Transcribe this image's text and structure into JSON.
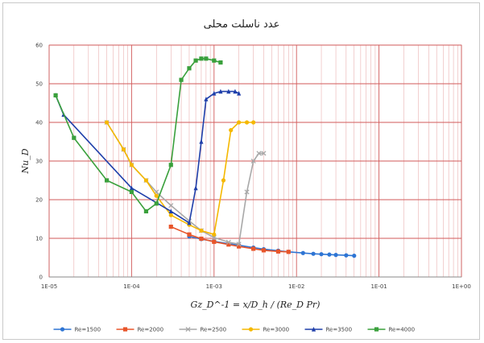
{
  "chart_data": {
    "type": "line",
    "title": "عدد ناسلت محلی",
    "ylabel": "Nu_D",
    "xlabel": "Gz_D^-1 = x/D_h / (Re_D Pr)",
    "x_scale": "log",
    "xlim": [
      1e-05,
      1
    ],
    "ylim": [
      0,
      60
    ],
    "x_tick_labels": [
      "1E-05",
      "1E-04",
      "1E-03",
      "1E-02",
      "1E-01",
      "1E+00"
    ],
    "y_ticks": [
      0,
      10,
      20,
      30,
      40,
      50,
      60
    ],
    "y_tick_labels": [
      "0",
      "10",
      "20",
      "30",
      "40",
      "50",
      "60"
    ],
    "grid": true,
    "legend_position": "bottom",
    "series": [
      {
        "name": "Re=1500",
        "color": "#2e75d4",
        "marker": "circle",
        "points": [
          [
            0.0005,
            10.5
          ],
          [
            0.0007,
            9.8
          ],
          [
            0.001,
            9.2
          ],
          [
            0.0015,
            8.6
          ],
          [
            0.002,
            8.2
          ],
          [
            0.003,
            7.6
          ],
          [
            0.004,
            7.2
          ],
          [
            0.006,
            6.8
          ],
          [
            0.008,
            6.5
          ],
          [
            0.012,
            6.2
          ],
          [
            0.016,
            6.0
          ],
          [
            0.02,
            5.9
          ],
          [
            0.025,
            5.8
          ],
          [
            0.03,
            5.7
          ],
          [
            0.04,
            5.6
          ],
          [
            0.05,
            5.5
          ]
        ]
      },
      {
        "name": "Re=2000",
        "color": "#e8552a",
        "marker": "square",
        "points": [
          [
            0.0003,
            13.0
          ],
          [
            0.0005,
            11.0
          ],
          [
            0.0007,
            9.9
          ],
          [
            0.001,
            9.1
          ],
          [
            0.0015,
            8.4
          ],
          [
            0.002,
            7.9
          ],
          [
            0.003,
            7.3
          ],
          [
            0.004,
            6.9
          ],
          [
            0.006,
            6.6
          ],
          [
            0.008,
            6.5
          ]
        ]
      },
      {
        "name": "Re=2500",
        "color": "#a8a8a8",
        "marker": "cross",
        "points": [
          [
            5e-05,
            40.0
          ],
          [
            8e-05,
            33.0
          ],
          [
            0.0001,
            29.0
          ],
          [
            0.00015,
            25.0
          ],
          [
            0.0002,
            22.0
          ],
          [
            0.0003,
            18.5
          ],
          [
            0.0005,
            14.5
          ],
          [
            0.0007,
            12.0
          ],
          [
            0.001,
            10.2
          ],
          [
            0.0015,
            9.0
          ],
          [
            0.002,
            8.5
          ],
          [
            0.0025,
            22.0
          ],
          [
            0.003,
            30.0
          ],
          [
            0.0035,
            32.0
          ],
          [
            0.004,
            32.0
          ]
        ]
      },
      {
        "name": "Re=3000",
        "color": "#f5b800",
        "marker": "circle",
        "points": [
          [
            5e-05,
            40.0
          ],
          [
            8e-05,
            33.0
          ],
          [
            0.0001,
            29.0
          ],
          [
            0.00015,
            25.0
          ],
          [
            0.0002,
            21.0
          ],
          [
            0.0003,
            16.0
          ],
          [
            0.0005,
            13.5
          ],
          [
            0.0007,
            12.0
          ],
          [
            0.001,
            11.0
          ],
          [
            0.0013,
            25.0
          ],
          [
            0.0016,
            38.0
          ],
          [
            0.002,
            40.0
          ],
          [
            0.0025,
            40.0
          ],
          [
            0.003,
            40.0
          ]
        ]
      },
      {
        "name": "Re=3500",
        "color": "#1f3faa",
        "marker": "triangle",
        "points": [
          [
            1.2e-05,
            47.0
          ],
          [
            1.5e-05,
            42.0
          ],
          [
            0.0001,
            23.0
          ],
          [
            0.0003,
            17.0
          ],
          [
            0.0005,
            14.0
          ],
          [
            0.0006,
            23.0
          ],
          [
            0.0007,
            35.0
          ],
          [
            0.0008,
            46.0
          ],
          [
            0.001,
            47.5
          ],
          [
            0.0012,
            48.0
          ],
          [
            0.0015,
            48.0
          ],
          [
            0.0018,
            48.0
          ],
          [
            0.002,
            47.5
          ]
        ]
      },
      {
        "name": "Re=4000",
        "color": "#3aa03c",
        "marker": "square",
        "points": [
          [
            1.2e-05,
            47.0
          ],
          [
            2e-05,
            36.0
          ],
          [
            5e-05,
            25.0
          ],
          [
            0.0001,
            22.0
          ],
          [
            0.00015,
            17.0
          ],
          [
            0.0002,
            19.0
          ],
          [
            0.0003,
            29.0
          ],
          [
            0.0004,
            51.0
          ],
          [
            0.0005,
            54.0
          ],
          [
            0.0006,
            56.0
          ],
          [
            0.0007,
            56.5
          ],
          [
            0.0008,
            56.5
          ],
          [
            0.001,
            56.0
          ],
          [
            0.0012,
            55.5
          ]
        ]
      }
    ],
    "legend": [
      {
        "name": "Re=1500",
        "color": "#2e75d4",
        "marker": "circle"
      },
      {
        "name": "Re=2000",
        "color": "#e8552a",
        "marker": "square"
      },
      {
        "name": "Re=2500",
        "color": "#a8a8a8",
        "marker": "cross"
      },
      {
        "name": "Re=3000",
        "color": "#f5b800",
        "marker": "circle"
      },
      {
        "name": "Re=3500",
        "color": "#1f3faa",
        "marker": "triangle"
      },
      {
        "name": "Re=4000",
        "color": "#3aa03c",
        "marker": "square"
      }
    ]
  }
}
